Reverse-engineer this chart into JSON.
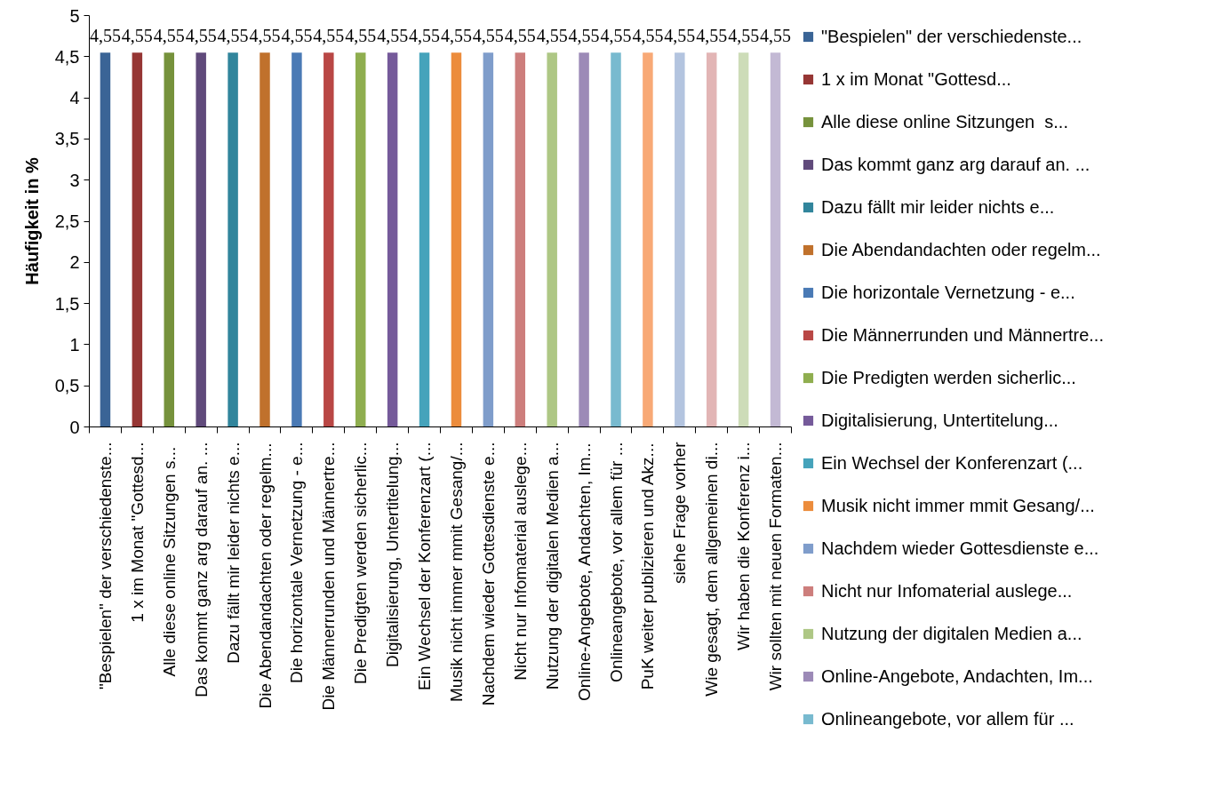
{
  "chart_data": {
    "type": "bar",
    "ylabel": "Häufigkeit in %",
    "categories": [
      "\"Bespielen\" der verschiedenste...",
      "1 x im Monat \"Gottesd...",
      "Alle diese online Sitzungen  s...",
      "Das kommt ganz arg darauf an. ...",
      "Dazu fällt mir leider nichts e...",
      "Die Abendandachten oder regelm...",
      "Die horizontale Vernetzung - e...",
      "Die Männerrunden und Männertre...",
      "Die Predigten werden sicherlic...",
      "Digitalisierung, Untertitelung...",
      "Ein Wechsel der Konferenzart (...",
      "Musik nicht immer mmit Gesang/...",
      "Nachdem wieder Gottesdienste e...",
      "Nicht nur Infomaterial auslege...",
      "Nutzung der digitalen Medien a...",
      "Online-Angebote, Andachten, Im...",
      "Onlineangebote, vor allem für ...",
      "PuK weiter publizieren und Akz...",
      "siehe Frage vorher",
      "Wie gesagt, dem allgemeinen di...",
      "Wir haben die Konferenz i...",
      "Wir sollten mit neuen Formaten..."
    ],
    "series": [
      {
        "name": "\"Bespielen\" der verschiedenste...",
        "color": "#3a6496",
        "values": [
          4.55,
          null,
          null,
          null,
          null,
          null,
          null,
          null,
          null,
          null,
          null,
          null,
          null,
          null,
          null,
          null,
          null,
          null,
          null,
          null,
          null,
          null
        ],
        "value_labels": [
          "4,55",
          null,
          null,
          null,
          null,
          null,
          null,
          null,
          null,
          null,
          null,
          null,
          null,
          null,
          null,
          null,
          null,
          null,
          null,
          null,
          null,
          null
        ]
      },
      {
        "name": "1 x im Monat \"Gottesd...",
        "color": "#963634",
        "values": [
          null,
          4.55,
          null,
          null,
          null,
          null,
          null,
          null,
          null,
          null,
          null,
          null,
          null,
          null,
          null,
          null,
          null,
          null,
          null,
          null,
          null,
          null
        ],
        "value_labels": [
          null,
          "4,55",
          null,
          null,
          null,
          null,
          null,
          null,
          null,
          null,
          null,
          null,
          null,
          null,
          null,
          null,
          null,
          null,
          null,
          null,
          null,
          null
        ]
      },
      {
        "name": "Alle diese online Sitzungen  s...",
        "color": "#76923c",
        "values": [
          null,
          null,
          4.55,
          null,
          null,
          null,
          null,
          null,
          null,
          null,
          null,
          null,
          null,
          null,
          null,
          null,
          null,
          null,
          null,
          null,
          null,
          null
        ],
        "value_labels": [
          null,
          null,
          "4,55",
          null,
          null,
          null,
          null,
          null,
          null,
          null,
          null,
          null,
          null,
          null,
          null,
          null,
          null,
          null,
          null,
          null,
          null,
          null
        ]
      },
      {
        "name": "Das kommt ganz arg darauf an. ...",
        "color": "#604a7b",
        "values": [
          null,
          null,
          null,
          4.55,
          null,
          null,
          null,
          null,
          null,
          null,
          null,
          null,
          null,
          null,
          null,
          null,
          null,
          null,
          null,
          null,
          null,
          null
        ],
        "value_labels": [
          null,
          null,
          null,
          "4,55",
          null,
          null,
          null,
          null,
          null,
          null,
          null,
          null,
          null,
          null,
          null,
          null,
          null,
          null,
          null,
          null,
          null,
          null
        ]
      },
      {
        "name": "Dazu fällt mir leider nichts e...",
        "color": "#31859c",
        "values": [
          null,
          null,
          null,
          null,
          4.55,
          null,
          null,
          null,
          null,
          null,
          null,
          null,
          null,
          null,
          null,
          null,
          null,
          null,
          null,
          null,
          null,
          null
        ],
        "value_labels": [
          null,
          null,
          null,
          null,
          "4,55",
          null,
          null,
          null,
          null,
          null,
          null,
          null,
          null,
          null,
          null,
          null,
          null,
          null,
          null,
          null,
          null,
          null
        ]
      },
      {
        "name": "Die Abendandachten oder regelm...",
        "color": "#c0712c",
        "values": [
          null,
          null,
          null,
          null,
          null,
          4.55,
          null,
          null,
          null,
          null,
          null,
          null,
          null,
          null,
          null,
          null,
          null,
          null,
          null,
          null,
          null,
          null
        ],
        "value_labels": [
          null,
          null,
          null,
          null,
          null,
          "4,55",
          null,
          null,
          null,
          null,
          null,
          null,
          null,
          null,
          null,
          null,
          null,
          null,
          null,
          null,
          null,
          null
        ]
      },
      {
        "name": "Die horizontale Vernetzung - e...",
        "color": "#4a7ab5",
        "values": [
          null,
          null,
          null,
          null,
          null,
          null,
          4.55,
          null,
          null,
          null,
          null,
          null,
          null,
          null,
          null,
          null,
          null,
          null,
          null,
          null,
          null,
          null
        ],
        "value_labels": [
          null,
          null,
          null,
          null,
          null,
          null,
          "4,55",
          null,
          null,
          null,
          null,
          null,
          null,
          null,
          null,
          null,
          null,
          null,
          null,
          null,
          null,
          null
        ]
      },
      {
        "name": "Die Männerrunden und Männertre...",
        "color": "#b94745",
        "values": [
          null,
          null,
          null,
          null,
          null,
          null,
          null,
          4.55,
          null,
          null,
          null,
          null,
          null,
          null,
          null,
          null,
          null,
          null,
          null,
          null,
          null,
          null
        ],
        "value_labels": [
          null,
          null,
          null,
          null,
          null,
          null,
          null,
          "4,55",
          null,
          null,
          null,
          null,
          null,
          null,
          null,
          null,
          null,
          null,
          null,
          null,
          null,
          null
        ]
      },
      {
        "name": "Die Predigten werden sicherlic...",
        "color": "#8fae4f",
        "values": [
          null,
          null,
          null,
          null,
          null,
          null,
          null,
          null,
          4.55,
          null,
          null,
          null,
          null,
          null,
          null,
          null,
          null,
          null,
          null,
          null,
          null,
          null
        ],
        "value_labels": [
          null,
          null,
          null,
          null,
          null,
          null,
          null,
          null,
          "4,55",
          null,
          null,
          null,
          null,
          null,
          null,
          null,
          null,
          null,
          null,
          null,
          null,
          null
        ]
      },
      {
        "name": "Digitalisierung, Untertitelung...",
        "color": "#755a9a",
        "values": [
          null,
          null,
          null,
          null,
          null,
          null,
          null,
          null,
          null,
          4.55,
          null,
          null,
          null,
          null,
          null,
          null,
          null,
          null,
          null,
          null,
          null,
          null
        ],
        "value_labels": [
          null,
          null,
          null,
          null,
          null,
          null,
          null,
          null,
          null,
          "4,55",
          null,
          null,
          null,
          null,
          null,
          null,
          null,
          null,
          null,
          null,
          null,
          null
        ]
      },
      {
        "name": "Ein Wechsel der Konferenzart (...",
        "color": "#45a3bb",
        "values": [
          null,
          null,
          null,
          null,
          null,
          null,
          null,
          null,
          null,
          null,
          4.55,
          null,
          null,
          null,
          null,
          null,
          null,
          null,
          null,
          null,
          null,
          null
        ],
        "value_labels": [
          null,
          null,
          null,
          null,
          null,
          null,
          null,
          null,
          null,
          null,
          "4,55",
          null,
          null,
          null,
          null,
          null,
          null,
          null,
          null,
          null,
          null,
          null
        ]
      },
      {
        "name": "Musik nicht immer mmit Gesang/...",
        "color": "#ec8c3c",
        "values": [
          null,
          null,
          null,
          null,
          null,
          null,
          null,
          null,
          null,
          null,
          null,
          4.55,
          null,
          null,
          null,
          null,
          null,
          null,
          null,
          null,
          null,
          null
        ],
        "value_labels": [
          null,
          null,
          null,
          null,
          null,
          null,
          null,
          null,
          null,
          null,
          null,
          "4,55",
          null,
          null,
          null,
          null,
          null,
          null,
          null,
          null,
          null,
          null
        ]
      },
      {
        "name": "Nachdem wieder Gottesdienste e...",
        "color": "#7f9dcb",
        "values": [
          null,
          null,
          null,
          null,
          null,
          null,
          null,
          null,
          null,
          null,
          null,
          null,
          4.55,
          null,
          null,
          null,
          null,
          null,
          null,
          null,
          null,
          null
        ],
        "value_labels": [
          null,
          null,
          null,
          null,
          null,
          null,
          null,
          null,
          null,
          null,
          null,
          null,
          "4,55",
          null,
          null,
          null,
          null,
          null,
          null,
          null,
          null,
          null
        ]
      },
      {
        "name": "Nicht nur Infomaterial auslege...",
        "color": "#cd7e7c",
        "values": [
          null,
          null,
          null,
          null,
          null,
          null,
          null,
          null,
          null,
          null,
          null,
          null,
          null,
          4.55,
          null,
          null,
          null,
          null,
          null,
          null,
          null,
          null
        ],
        "value_labels": [
          null,
          null,
          null,
          null,
          null,
          null,
          null,
          null,
          null,
          null,
          null,
          null,
          null,
          "4,55",
          null,
          null,
          null,
          null,
          null,
          null,
          null,
          null
        ]
      },
      {
        "name": "Nutzung der digitalen Medien a...",
        "color": "#aec785",
        "values": [
          null,
          null,
          null,
          null,
          null,
          null,
          null,
          null,
          null,
          null,
          null,
          null,
          null,
          null,
          4.55,
          null,
          null,
          null,
          null,
          null,
          null,
          null
        ],
        "value_labels": [
          null,
          null,
          null,
          null,
          null,
          null,
          null,
          null,
          null,
          null,
          null,
          null,
          null,
          null,
          "4,55",
          null,
          null,
          null,
          null,
          null,
          null,
          null
        ]
      },
      {
        "name": "Online-Angebote, Andachten, Im...",
        "color": "#9c8ab7",
        "values": [
          null,
          null,
          null,
          null,
          null,
          null,
          null,
          null,
          null,
          null,
          null,
          null,
          null,
          null,
          null,
          4.55,
          null,
          null,
          null,
          null,
          null,
          null
        ],
        "value_labels": [
          null,
          null,
          null,
          null,
          null,
          null,
          null,
          null,
          null,
          null,
          null,
          null,
          null,
          null,
          null,
          "4,55",
          null,
          null,
          null,
          null,
          null,
          null
        ]
      },
      {
        "name": "Onlineangebote, vor allem für ...",
        "color": "#78bacf",
        "values": [
          null,
          null,
          null,
          null,
          null,
          null,
          null,
          null,
          null,
          null,
          null,
          null,
          null,
          null,
          null,
          null,
          4.55,
          null,
          null,
          null,
          null,
          null
        ],
        "value_labels": [
          null,
          null,
          null,
          null,
          null,
          null,
          null,
          null,
          null,
          null,
          null,
          null,
          null,
          null,
          null,
          null,
          "4,55",
          null,
          null,
          null,
          null,
          null
        ]
      },
      {
        "color": "#f8a976",
        "values": [
          null,
          null,
          null,
          null,
          null,
          null,
          null,
          null,
          null,
          null,
          null,
          null,
          null,
          null,
          null,
          null,
          null,
          4.55,
          null,
          null,
          null,
          null
        ],
        "value_labels": [
          null,
          null,
          null,
          null,
          null,
          null,
          null,
          null,
          null,
          null,
          null,
          null,
          null,
          null,
          null,
          null,
          null,
          "4,55",
          null,
          null,
          null,
          null
        ]
      },
      {
        "color": "#b3c4df",
        "values": [
          null,
          null,
          null,
          null,
          null,
          null,
          null,
          null,
          null,
          null,
          null,
          null,
          null,
          null,
          null,
          null,
          null,
          null,
          4.55,
          null,
          null,
          null
        ],
        "value_labels": [
          null,
          null,
          null,
          null,
          null,
          null,
          null,
          null,
          null,
          null,
          null,
          null,
          null,
          null,
          null,
          null,
          null,
          null,
          "4,55",
          null,
          null,
          null
        ]
      },
      {
        "color": "#e2b5b5",
        "values": [
          null,
          null,
          null,
          null,
          null,
          null,
          null,
          null,
          null,
          null,
          null,
          null,
          null,
          null,
          null,
          null,
          null,
          null,
          null,
          4.55,
          null,
          null
        ],
        "value_labels": [
          null,
          null,
          null,
          null,
          null,
          null,
          null,
          null,
          null,
          null,
          null,
          null,
          null,
          null,
          null,
          null,
          null,
          null,
          null,
          "4,55",
          null,
          null
        ]
      },
      {
        "color": "#cddcb8",
        "values": [
          null,
          null,
          null,
          null,
          null,
          null,
          null,
          null,
          null,
          null,
          null,
          null,
          null,
          null,
          null,
          null,
          null,
          null,
          null,
          null,
          4.55,
          null
        ],
        "value_labels": [
          null,
          null,
          null,
          null,
          null,
          null,
          null,
          null,
          null,
          null,
          null,
          null,
          null,
          null,
          null,
          null,
          null,
          null,
          null,
          null,
          "4,55",
          null
        ]
      },
      {
        "color": "#c3b9d4",
        "values": [
          null,
          null,
          null,
          null,
          null,
          null,
          null,
          null,
          null,
          null,
          null,
          null,
          null,
          null,
          null,
          null,
          null,
          null,
          null,
          null,
          null,
          4.55
        ],
        "value_labels": [
          null,
          null,
          null,
          null,
          null,
          null,
          null,
          null,
          null,
          null,
          null,
          null,
          null,
          null,
          null,
          null,
          null,
          null,
          null,
          null,
          null,
          "4,55"
        ]
      }
    ],
    "ylim": [
      0,
      5
    ],
    "yticks": [
      0,
      {
        "value": 0.5,
        "label": "0,5"
      },
      1,
      {
        "value": 1.5,
        "label": "1,5"
      },
      2,
      {
        "value": 2.5,
        "label": "2,5"
      },
      3,
      {
        "value": 3.5,
        "label": "3,5"
      },
      4,
      {
        "value": 4.5,
        "label": "4,5"
      },
      5
    ],
    "grid": false,
    "legend": "right"
  }
}
